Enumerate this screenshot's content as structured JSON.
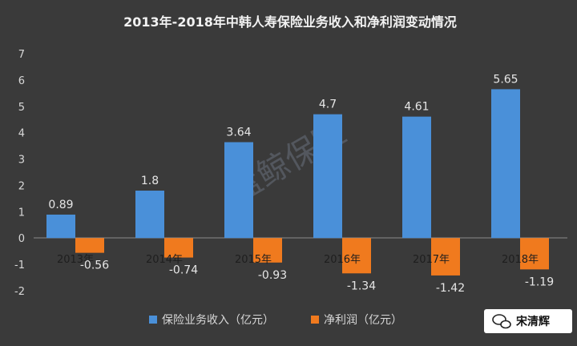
{
  "chart_data": {
    "type": "bar",
    "title": "2013年-2018年中韩人寿保险业务收入和净利润变动情况",
    "categories": [
      "2013年",
      "2014年",
      "2015年",
      "2016年",
      "2017年",
      "2018年"
    ],
    "series": [
      {
        "name": "保险业务收入（亿元）",
        "values": [
          0.89,
          1.8,
          3.64,
          4.7,
          4.61,
          5.65
        ],
        "color": "#4a90d9"
      },
      {
        "name": "净利润（亿元）",
        "values": [
          -0.56,
          -0.74,
          -0.93,
          -1.34,
          -1.42,
          -1.19
        ],
        "color": "#f07a1e"
      }
    ],
    "value_labels": [
      [
        "0.89",
        "1.8",
        "3.64",
        "4.7",
        "4.61",
        "5.65"
      ],
      [
        "-0.56",
        "-0.74",
        "-0.93",
        "-1.34",
        "-1.42",
        "-1.19"
      ]
    ],
    "ylim": [
      -2,
      7
    ],
    "yticks": [
      -2,
      -1,
      0,
      1,
      2,
      3,
      4,
      5,
      6,
      7
    ],
    "grid": false,
    "legend_position": "bottom-center",
    "background_color": "#3a3a3a"
  },
  "watermark": "蓝鲸保险",
  "source_badge": {
    "icon": "wechat-icon",
    "text": "宋清辉"
  }
}
